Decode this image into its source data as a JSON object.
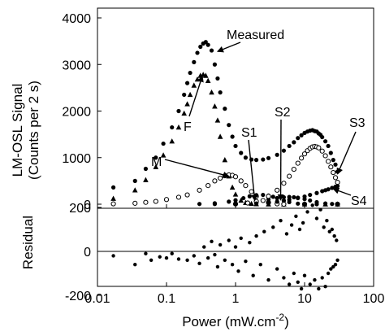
{
  "chart_data": [
    {
      "type": "scatter",
      "panel": "main",
      "ylabel_line1": "LM-OSL Signal",
      "ylabel_line2": "(Counts per 2 s)",
      "x_scale": "log",
      "xlim": [
        0.01,
        100
      ],
      "ylim": [
        0,
        4000
      ],
      "y_ticks": [
        0,
        1000,
        2000,
        3000,
        4000
      ],
      "y_tick_labels": [
        "0",
        "1000",
        "2000",
        "3000",
        "4000"
      ],
      "series": [
        {
          "name": "Measured",
          "marker": "filled-circle",
          "points": [
            [
              0.017,
              360
            ],
            [
              0.035,
              500
            ],
            [
              0.05,
              760
            ],
            [
              0.07,
              1000
            ],
            [
              0.09,
              1300
            ],
            [
              0.12,
              1650
            ],
            [
              0.15,
              2000
            ],
            [
              0.18,
              2350
            ],
            [
              0.2,
              2600
            ],
            [
              0.22,
              2820
            ],
            [
              0.25,
              3050
            ],
            [
              0.28,
              3250
            ],
            [
              0.31,
              3380
            ],
            [
              0.34,
              3450
            ],
            [
              0.37,
              3480
            ],
            [
              0.4,
              3420
            ],
            [
              0.45,
              3300
            ],
            [
              0.5,
              3000
            ],
            [
              0.55,
              2700
            ],
            [
              0.6,
              2400
            ],
            [
              0.7,
              2050
            ],
            [
              0.8,
              1700
            ],
            [
              0.9,
              1450
            ],
            [
              1.0,
              1250
            ],
            [
              1.2,
              1100
            ],
            [
              1.4,
              1000
            ],
            [
              1.7,
              960
            ],
            [
              2.0,
              950
            ],
            [
              2.5,
              960
            ],
            [
              3.0,
              990
            ],
            [
              4.0,
              1060
            ],
            [
              5.0,
              1150
            ],
            [
              6.0,
              1250
            ],
            [
              7.0,
              1330
            ],
            [
              8.0,
              1420
            ],
            [
              9.0,
              1480
            ],
            [
              10.0,
              1530
            ],
            [
              11.0,
              1560
            ],
            [
              12.0,
              1580
            ],
            [
              13.0,
              1590
            ],
            [
              14.0,
              1570
            ],
            [
              15.0,
              1560
            ],
            [
              16.0,
              1520
            ],
            [
              17.0,
              1490
            ],
            [
              18.0,
              1440
            ],
            [
              20.0,
              1350
            ],
            [
              22.0,
              1250
            ],
            [
              24.0,
              1100
            ],
            [
              26.0,
              950
            ],
            [
              28.0,
              850
            ],
            [
              30.0,
              700
            ]
          ]
        },
        {
          "name": "F",
          "marker": "filled-triangle",
          "points": [
            [
              0.017,
              120
            ],
            [
              0.035,
              300
            ],
            [
              0.05,
              520
            ],
            [
              0.07,
              800
            ],
            [
              0.09,
              1050
            ],
            [
              0.12,
              1350
            ],
            [
              0.15,
              1650
            ],
            [
              0.18,
              1950
            ],
            [
              0.2,
              2150
            ],
            [
              0.22,
              2350
            ],
            [
              0.25,
              2550
            ],
            [
              0.28,
              2680
            ],
            [
              0.31,
              2760
            ],
            [
              0.34,
              2780
            ],
            [
              0.37,
              2760
            ],
            [
              0.4,
              2650
            ],
            [
              0.45,
              2400
            ],
            [
              0.5,
              2100
            ],
            [
              0.55,
              1800
            ],
            [
              0.6,
              1450
            ],
            [
              0.7,
              950
            ],
            [
              0.8,
              600
            ],
            [
              0.9,
              360
            ],
            [
              1.0,
              210
            ],
            [
              1.2,
              80
            ],
            [
              1.4,
              30
            ],
            [
              1.7,
              10
            ],
            [
              2.0,
              3
            ],
            [
              3.0,
              0
            ],
            [
              5.0,
              0
            ],
            [
              10.0,
              0
            ],
            [
              20.0,
              0
            ],
            [
              30.0,
              0
            ]
          ]
        },
        {
          "name": "M",
          "marker": "open-circle",
          "points": [
            [
              0.017,
              8
            ],
            [
              0.035,
              20
            ],
            [
              0.05,
              40
            ],
            [
              0.07,
              60
            ],
            [
              0.1,
              100
            ],
            [
              0.15,
              150
            ],
            [
              0.2,
              200
            ],
            [
              0.3,
              300
            ],
            [
              0.4,
              400
            ],
            [
              0.5,
              500
            ],
            [
              0.6,
              560
            ],
            [
              0.7,
              610
            ],
            [
              0.8,
              630
            ],
            [
              0.9,
              620
            ],
            [
              1.0,
              590
            ],
            [
              1.2,
              500
            ],
            [
              1.4,
              400
            ],
            [
              1.7,
              270
            ],
            [
              2.0,
              170
            ],
            [
              2.5,
              80
            ],
            [
              3.0,
              35
            ],
            [
              4.0,
              8
            ],
            [
              5.0,
              0
            ],
            [
              10.0,
              0
            ],
            [
              30.0,
              0
            ]
          ]
        },
        {
          "name": "S1",
          "marker": "filled-circle",
          "points": [
            [
              0.3,
              5
            ],
            [
              0.5,
              20
            ],
            [
              0.8,
              55
            ],
            [
              1.0,
              85
            ],
            [
              1.3,
              130
            ],
            [
              1.6,
              170
            ],
            [
              2.0,
              195
            ],
            [
              2.5,
              200
            ],
            [
              3.0,
              185
            ],
            [
              3.5,
              160
            ],
            [
              4.0,
              130
            ],
            [
              5.0,
              80
            ],
            [
              6.0,
              45
            ],
            [
              8.0,
              12
            ],
            [
              10.0,
              3
            ],
            [
              15.0,
              0
            ],
            [
              30.0,
              0
            ]
          ]
        },
        {
          "name": "S2",
          "marker": "filled-circle",
          "points": [
            [
              0.5,
              3
            ],
            [
              1.0,
              15
            ],
            [
              1.5,
              35
            ],
            [
              2.0,
              60
            ],
            [
              3.0,
              100
            ],
            [
              4.0,
              130
            ],
            [
              5.0,
              150
            ],
            [
              6.0,
              155
            ],
            [
              7.0,
              150
            ],
            [
              8.0,
              140
            ],
            [
              10.0,
              110
            ],
            [
              12.0,
              80
            ],
            [
              15.0,
              45
            ],
            [
              20.0,
              15
            ],
            [
              25.0,
              5
            ],
            [
              30.0,
              2
            ]
          ]
        },
        {
          "name": "S3",
          "marker": "open-circle",
          "points": [
            [
              1.0,
              5
            ],
            [
              1.5,
              25
            ],
            [
              2.0,
              60
            ],
            [
              3.0,
              170
            ],
            [
              4.0,
              300
            ],
            [
              5.0,
              450
            ],
            [
              6.0,
              600
            ],
            [
              7.0,
              750
            ],
            [
              8.0,
              880
            ],
            [
              9.0,
              990
            ],
            [
              10.0,
              1080
            ],
            [
              11.0,
              1150
            ],
            [
              12.0,
              1200
            ],
            [
              13.0,
              1230
            ],
            [
              14.0,
              1240
            ],
            [
              15.0,
              1230
            ],
            [
              16.0,
              1210
            ],
            [
              18.0,
              1140
            ],
            [
              20.0,
              1040
            ],
            [
              22.0,
              920
            ],
            [
              24.0,
              800
            ],
            [
              26.0,
              680
            ],
            [
              28.0,
              570
            ],
            [
              30.0,
              470
            ]
          ]
        },
        {
          "name": "S4",
          "marker": "filled-circle",
          "points": [
            [
              1.0,
              3
            ],
            [
              2.0,
              15
            ],
            [
              3.0,
              35
            ],
            [
              4.0,
              55
            ],
            [
              5.0,
              75
            ],
            [
              6.0,
              95
            ],
            [
              8.0,
              130
            ],
            [
              10.0,
              165
            ],
            [
              12.0,
              200
            ],
            [
              15.0,
              240
            ],
            [
              18.0,
              280
            ],
            [
              20.0,
              300
            ],
            [
              22.0,
              320
            ],
            [
              25.0,
              350
            ],
            [
              28.0,
              375
            ],
            [
              30.0,
              390
            ]
          ]
        }
      ],
      "annotations": [
        {
          "text": "Measured",
          "points_to": [
            0.55,
            3280
          ]
        },
        {
          "text": "F",
          "points_to": [
            0.33,
            2750
          ]
        },
        {
          "text": "M",
          "points_to": [
            0.8,
            600
          ]
        },
        {
          "text": "S1",
          "points_to": [
            1.9,
            80
          ]
        },
        {
          "text": "S2",
          "points_to": [
            4.5,
            90
          ]
        },
        {
          "text": "S3",
          "points_to": [
            30.0,
            650
          ]
        },
        {
          "text": "S4",
          "points_to": [
            26.0,
            330
          ]
        }
      ]
    },
    {
      "type": "scatter",
      "panel": "residual",
      "xlabel_main": "Power (mW.cm",
      "xlabel_sup": "-2",
      "xlabel_end": ")",
      "ylabel": "Residual",
      "x_scale": "log",
      "xlim": [
        0.01,
        100
      ],
      "x_ticks": [
        0.01,
        0.1,
        1,
        10,
        100
      ],
      "x_tick_labels": [
        "0.01",
        "0.1",
        "1",
        "10",
        "100"
      ],
      "ylim": [
        -250,
        250
      ],
      "y_ticks": [
        -200,
        0,
        200
      ],
      "y_tick_labels": [
        "-200",
        "0",
        "200"
      ],
      "zero_line": true,
      "series": [
        {
          "name": "Residual",
          "marker": "filled-circle",
          "points": [
            [
              0.017,
              -20
            ],
            [
              0.035,
              -60
            ],
            [
              0.05,
              -10
            ],
            [
              0.06,
              -40
            ],
            [
              0.08,
              -25
            ],
            [
              0.1,
              -30
            ],
            [
              0.12,
              -10
            ],
            [
              0.15,
              -35
            ],
            [
              0.2,
              -40
            ],
            [
              0.25,
              -20
            ],
            [
              0.3,
              -55
            ],
            [
              0.35,
              20
            ],
            [
              0.4,
              -30
            ],
            [
              0.45,
              45
            ],
            [
              0.5,
              -15
            ],
            [
              0.55,
              -70
            ],
            [
              0.6,
              30
            ],
            [
              0.7,
              -40
            ],
            [
              0.8,
              50
            ],
            [
              0.9,
              -60
            ],
            [
              1.0,
              20
            ],
            [
              1.1,
              -90
            ],
            [
              1.2,
              60
            ],
            [
              1.4,
              -45
            ],
            [
              1.6,
              40
            ],
            [
              1.8,
              -110
            ],
            [
              2.0,
              70
            ],
            [
              2.3,
              -60
            ],
            [
              2.6,
              90
            ],
            [
              3.0,
              -130
            ],
            [
              3.5,
              110
            ],
            [
              4.0,
              -80
            ],
            [
              4.5,
              140
            ],
            [
              5.0,
              -120
            ],
            [
              5.5,
              80
            ],
            [
              6.0,
              -150
            ],
            [
              6.5,
              120
            ],
            [
              7.0,
              -100
            ],
            [
              7.5,
              160
            ],
            [
              8.0,
              -140
            ],
            [
              8.5,
              100
            ],
            [
              9.0,
              -170
            ],
            [
              9.5,
              130
            ],
            [
              10.0,
              -110
            ],
            [
              11.0,
              180
            ],
            [
              12.0,
              -150
            ],
            [
              13.0,
              210
            ],
            [
              14.0,
              -130
            ],
            [
              15.0,
              150
            ],
            [
              16.0,
              -170
            ],
            [
              17.0,
              190
            ],
            [
              18.0,
              -120
            ],
            [
              19.0,
              110
            ],
            [
              20.0,
              -160
            ],
            [
              21.0,
              140
            ],
            [
              22.0,
              -100
            ],
            [
              23.0,
              90
            ],
            [
              24.0,
              -80
            ],
            [
              25.0,
              100
            ],
            [
              26.0,
              -70
            ],
            [
              27.0,
              70
            ],
            [
              28.0,
              -60
            ],
            [
              29.0,
              50
            ],
            [
              30.0,
              -40
            ]
          ]
        }
      ]
    }
  ]
}
